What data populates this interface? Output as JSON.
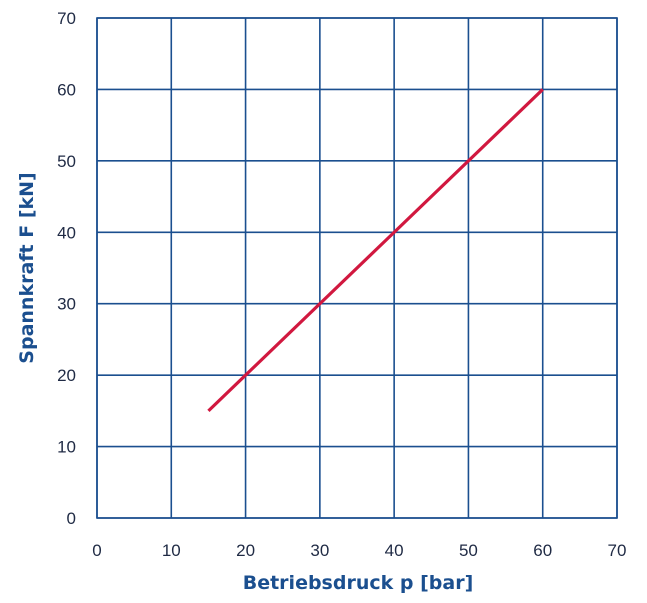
{
  "chart_data": {
    "type": "line",
    "xlabel": "Betriebsdruck p [bar]",
    "ylabel": "Spannkraft F [kN]",
    "xlim": [
      0,
      70
    ],
    "ylim": [
      0,
      70
    ],
    "xticks": [
      0,
      10,
      20,
      30,
      40,
      50,
      60,
      70
    ],
    "yticks": [
      0,
      10,
      20,
      30,
      40,
      50,
      60,
      70
    ],
    "grid": true,
    "series": [
      {
        "x": [
          15,
          60
        ],
        "y": [
          15,
          60
        ],
        "color": "#d1183f"
      }
    ],
    "colors": {
      "grid": "#1b4f8f",
      "axis_title": "#1b4f8f",
      "tick_label": "#1f2a44"
    }
  }
}
